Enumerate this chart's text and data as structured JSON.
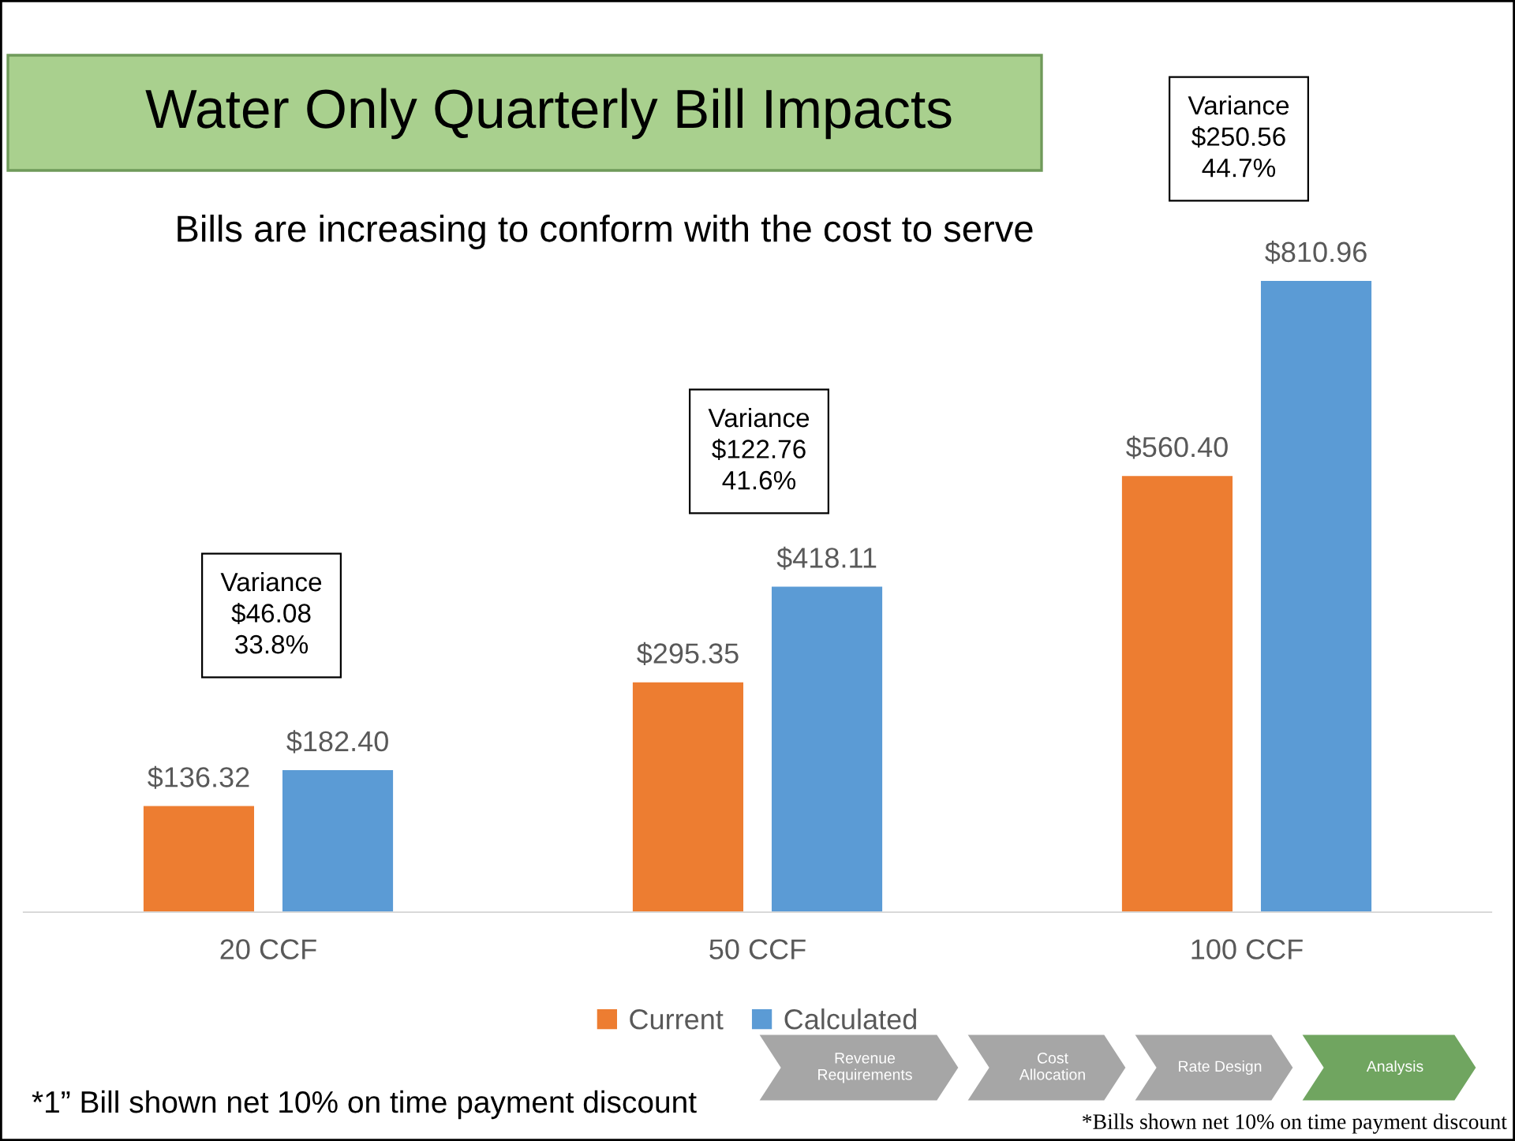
{
  "chart_data": {
    "type": "bar",
    "title": "Water Only Quarterly Bill Impacts",
    "subtitle": "Bills are increasing to conform with the cost to serve",
    "categories": [
      "20 CCF",
      "50 CCF",
      "100 CCF"
    ],
    "series": [
      {
        "name": "Current",
        "color": "#ed7d31",
        "values": [
          136.32,
          295.35,
          560.4
        ],
        "value_labels": [
          "$136.32",
          "$295.35",
          "$560.40"
        ]
      },
      {
        "name": "Calculated",
        "color": "#5b9bd5",
        "values": [
          182.4,
          418.11,
          810.96
        ],
        "value_labels": [
          "$182.40",
          "$418.11",
          "$810.96"
        ]
      }
    ],
    "legend": "bottom",
    "grid": false,
    "annotations": [
      "Variance\n$46.08\n33.8%",
      "Variance\n$122.76\n41.6%",
      "Variance\n$250.56\n44.7%",
      "Revenue Requirements",
      "Cost Allocation",
      "Rate Design",
      "Analysis",
      "*1” Bill shown net 10% on time payment discount",
      "*Bills shown net 10% on time payment discount"
    ]
  }
}
